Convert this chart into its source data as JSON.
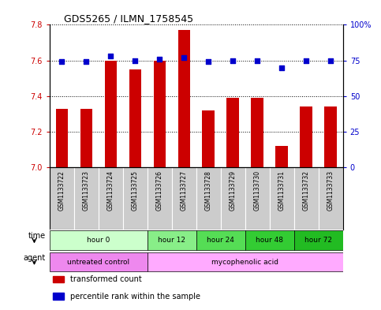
{
  "title": "GDS5265 / ILMN_1758545",
  "samples": [
    "GSM1133722",
    "GSM1133723",
    "GSM1133724",
    "GSM1133725",
    "GSM1133726",
    "GSM1133727",
    "GSM1133728",
    "GSM1133729",
    "GSM1133730",
    "GSM1133731",
    "GSM1133732",
    "GSM1133733"
  ],
  "transformed_count": [
    7.33,
    7.33,
    7.6,
    7.55,
    7.6,
    7.77,
    7.32,
    7.39,
    7.39,
    7.12,
    7.34,
    7.34
  ],
  "percentile_rank": [
    74,
    74,
    78,
    75,
    76,
    77,
    74,
    75,
    75,
    70,
    75,
    75
  ],
  "ylim_left": [
    7.0,
    7.8
  ],
  "ylim_right": [
    0,
    100
  ],
  "yticks_left": [
    7.0,
    7.2,
    7.4,
    7.6,
    7.8
  ],
  "yticks_right": [
    0,
    25,
    50,
    75,
    100
  ],
  "bar_color": "#cc0000",
  "dot_color": "#0000cc",
  "time_groups": [
    {
      "label": "hour 0",
      "start": 0,
      "end": 4,
      "color": "#ccffcc"
    },
    {
      "label": "hour 12",
      "start": 4,
      "end": 6,
      "color": "#88ee88"
    },
    {
      "label": "hour 24",
      "start": 6,
      "end": 8,
      "color": "#55dd55"
    },
    {
      "label": "hour 48",
      "start": 8,
      "end": 10,
      "color": "#33cc33"
    },
    {
      "label": "hour 72",
      "start": 10,
      "end": 12,
      "color": "#22bb22"
    }
  ],
  "agent_groups": [
    {
      "label": "untreated control",
      "start": 0,
      "end": 4,
      "color": "#ee88ee"
    },
    {
      "label": "mycophenolic acid",
      "start": 4,
      "end": 12,
      "color": "#ffaaff"
    }
  ],
  "sample_bg_color": "#cccccc",
  "bar_width": 0.5,
  "dot_size": 25
}
